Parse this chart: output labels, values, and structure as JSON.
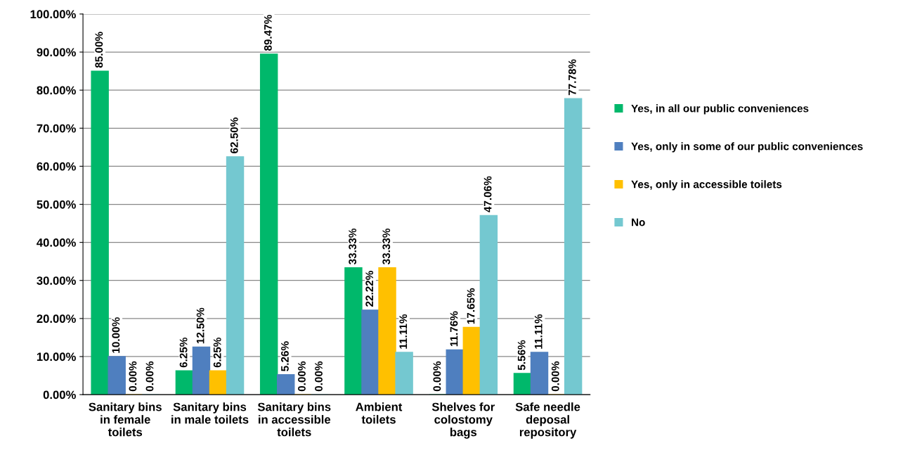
{
  "chart_data": {
    "type": "bar",
    "categories": [
      "Sanitary bins\nin female\ntoilets",
      "Sanitary bins\nin male toilets",
      "Sanitary bins\nin accessible\ntoilets",
      "Ambient\ntoilets",
      "Shelves for\ncolostomy\nbags",
      "Safe needle\ndeposal\nrepository"
    ],
    "series": [
      {
        "name": "Yes, in all our public conveniences",
        "color": "#00b86b",
        "values": [
          85.0,
          6.25,
          89.47,
          33.33,
          0.0,
          5.56
        ],
        "value_labels": [
          "85.00%",
          "6.25%",
          "89.47%",
          "33.33%",
          "0.00%",
          "5.56%"
        ]
      },
      {
        "name": "Yes, only in some of our public conveniences",
        "color": "#4f7fbf",
        "values": [
          10.0,
          12.5,
          5.26,
          22.22,
          11.76,
          11.11
        ],
        "value_labels": [
          "10.00%",
          "12.50%",
          "5.26%",
          "22.22%",
          "11.76%",
          "11.11%"
        ]
      },
      {
        "name": "Yes, only in accessible toilets",
        "color": "#ffc000",
        "values": [
          0.0,
          6.25,
          0.0,
          33.33,
          17.65,
          0.0
        ],
        "value_labels": [
          "0.00%",
          "6.25%",
          "0.00%",
          "33.33%",
          "17.65%",
          "0.00%"
        ]
      },
      {
        "name": "No",
        "color": "#74c8d0",
        "values": [
          0.0,
          62.5,
          0.0,
          11.11,
          47.06,
          77.78
        ],
        "value_labels": [
          "0.00%",
          "62.50%",
          "0.00%",
          "11.11%",
          "47.06%",
          "77.78%"
        ]
      }
    ],
    "ylim": [
      0,
      100
    ],
    "yticks": [
      {
        "value": 0,
        "label": "0.00%"
      },
      {
        "value": 10,
        "label": "10.00%"
      },
      {
        "value": 20,
        "label": "20.00%"
      },
      {
        "value": 30,
        "label": "30.00%"
      },
      {
        "value": 40,
        "label": "40.00%"
      },
      {
        "value": 50,
        "label": "50.00%"
      },
      {
        "value": 60,
        "label": "60.00%"
      },
      {
        "value": 70,
        "label": "70.00%"
      },
      {
        "value": 80,
        "label": "80.00%"
      },
      {
        "value": 90,
        "label": "90.00%"
      },
      {
        "value": 100,
        "label": "100.00%"
      }
    ],
    "grid": "y",
    "legend": "right"
  }
}
